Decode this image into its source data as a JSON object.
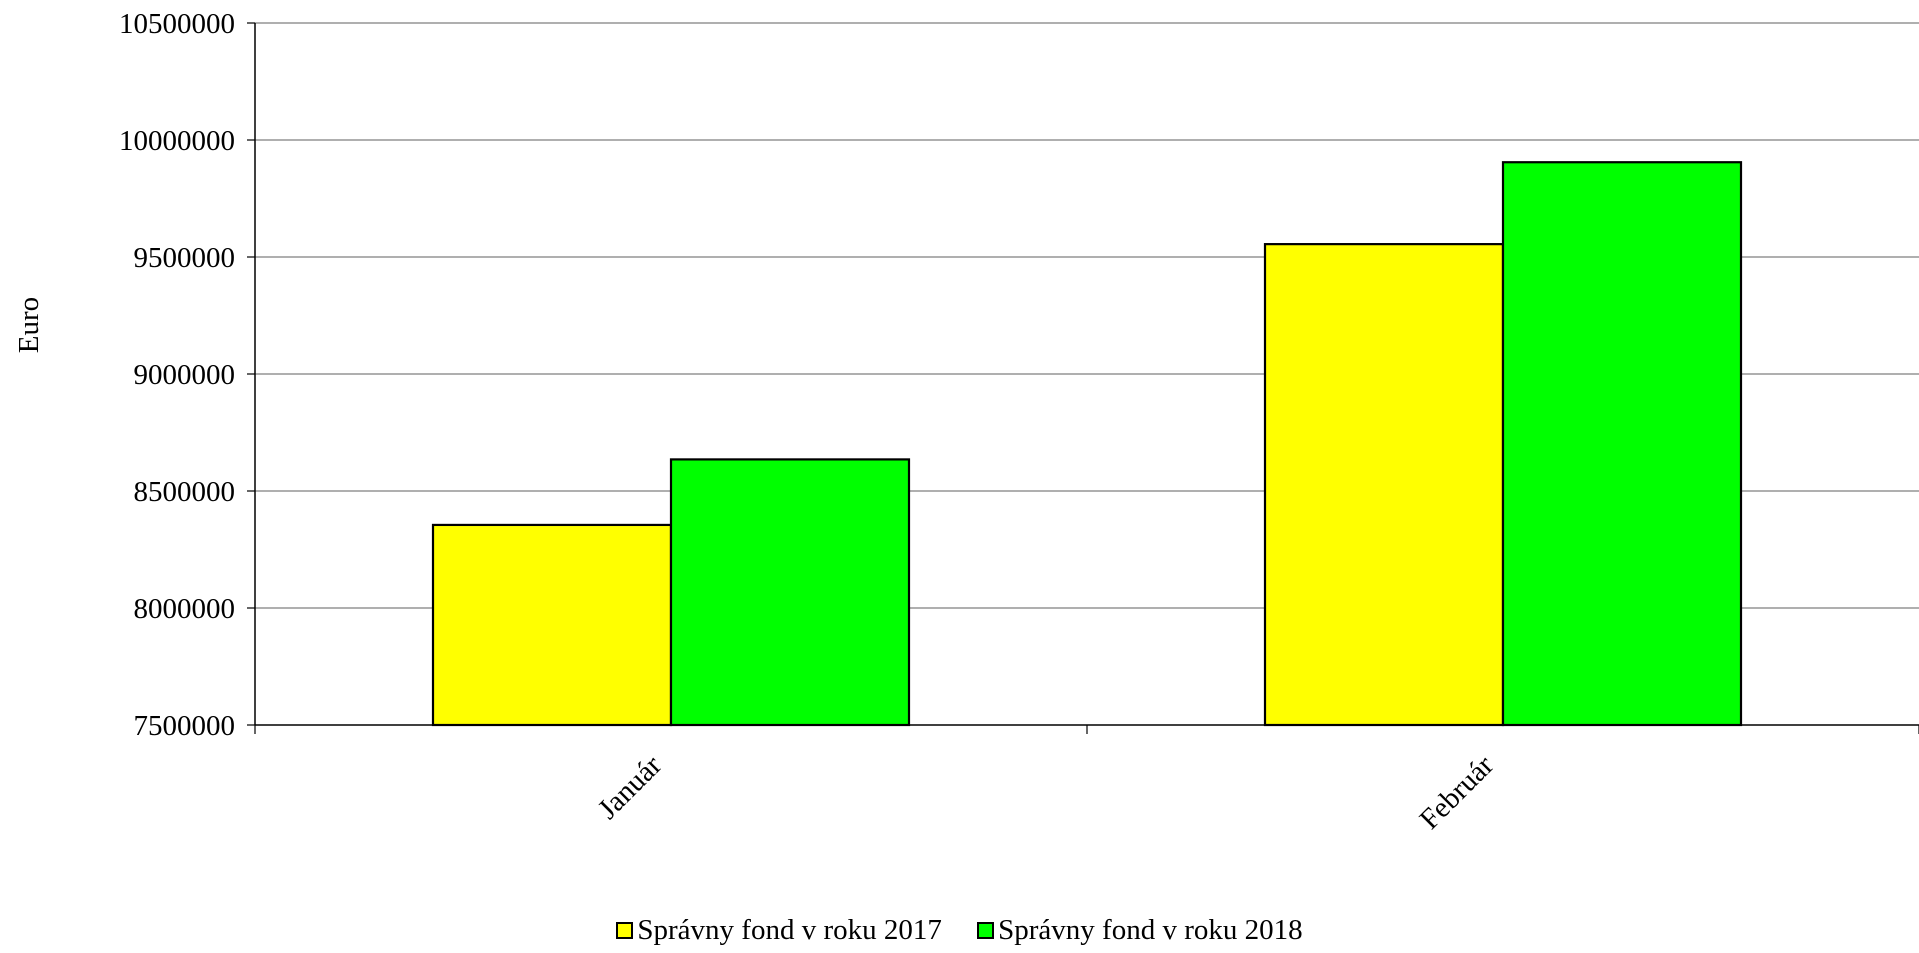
{
  "chart_data": {
    "type": "bar",
    "title": "",
    "xlabel": "",
    "ylabel": "Euro",
    "ylim": [
      7500000,
      10500000
    ],
    "yticks": [
      7500000,
      8000000,
      8500000,
      9000000,
      9500000,
      10000000,
      10500000
    ],
    "grid": true,
    "legend_position": "bottom",
    "categories": [
      "Január",
      "Február"
    ],
    "series": [
      {
        "name": "Správny fond v roku 2017",
        "color": "#ffff00",
        "values": [
          8355000,
          9555000
        ]
      },
      {
        "name": "Správny fond v roku 2018",
        "color": "#00ff00",
        "values": [
          8635000,
          9905000
        ]
      }
    ]
  }
}
